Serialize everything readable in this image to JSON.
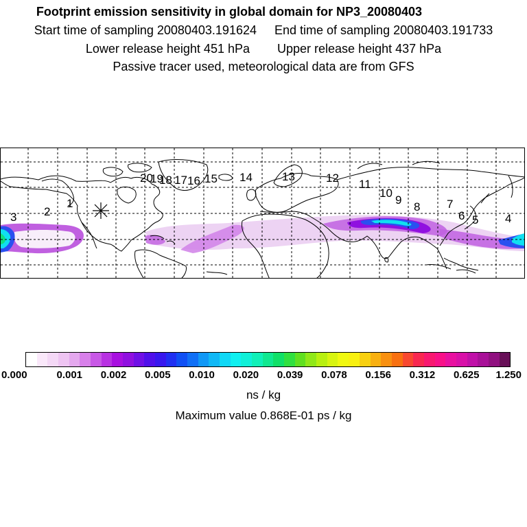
{
  "header": {
    "title": "Footprint emission sensitivity in global domain for NP3_20080403",
    "start_sampling": "Start time of sampling 20080403.191624",
    "end_sampling": "End time of sampling 20080403.191733",
    "lower_release": "Lower release height  451 hPa",
    "upper_release": "Upper release height  437 hPa",
    "tracer_note": "Passive tracer used, meteorological data are from GFS"
  },
  "map": {
    "release_marker": "release-point-asterisk",
    "point_labels": [
      {
        "text": "1"
      },
      {
        "text": "2"
      },
      {
        "text": "3"
      },
      {
        "text": "4"
      },
      {
        "text": "5"
      },
      {
        "text": "6"
      },
      {
        "text": "7"
      },
      {
        "text": "8"
      },
      {
        "text": "9"
      },
      {
        "text": "10"
      },
      {
        "text": "11"
      },
      {
        "text": "12"
      },
      {
        "text": "13"
      },
      {
        "text": "14"
      },
      {
        "text": "15"
      },
      {
        "text": "16"
      },
      {
        "text": "17"
      },
      {
        "text": "18"
      },
      {
        "text": "19"
      },
      {
        "text": "20"
      }
    ],
    "colors": {
      "very_low": "#e8c8f0",
      "low": "#c060e0",
      "mid_purple": "#9010e0",
      "blue": "#2a50f0",
      "cyan": "#10e0f0",
      "green": "#10e080",
      "coast": "#000000",
      "grid": "#000000"
    }
  },
  "colorbar": {
    "colors": [
      "#ffffff",
      "#fae8fa",
      "#f4d8f6",
      "#eec4f2",
      "#e4a8ee",
      "#d880ea",
      "#c858e6",
      "#b832e2",
      "#a810e0",
      "#9010e0",
      "#7010e6",
      "#5010ea",
      "#3818ee",
      "#2030f2",
      "#1050f4",
      "#1070f6",
      "#1098f6",
      "#10b8f6",
      "#10d8f6",
      "#10f0f0",
      "#10f0d8",
      "#10f0b8",
      "#10e890",
      "#10e068",
      "#30e040",
      "#60e020",
      "#90e818",
      "#b8f010",
      "#d8f410",
      "#f0f810",
      "#f8f010",
      "#f8d010",
      "#f8b010",
      "#f89010",
      "#f87010",
      "#f84830",
      "#f82850",
      "#f81870",
      "#f81088",
      "#e810a0",
      "#d810a8",
      "#c010a8",
      "#a81098",
      "#901080",
      "#681058"
    ],
    "tick_labels": [
      "0.000",
      "0.001",
      "0.002",
      "0.005",
      "0.010",
      "0.020",
      "0.039",
      "0.078",
      "0.156",
      "0.312",
      "0.625",
      "1.250"
    ],
    "unit": "ns / kg"
  },
  "max_value": "Maximum value  0.868E-01 ps / kg"
}
